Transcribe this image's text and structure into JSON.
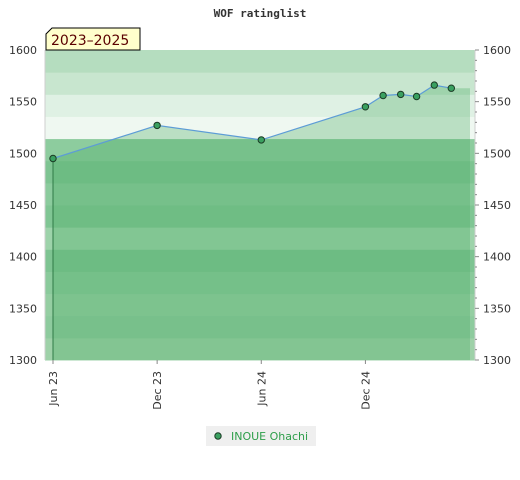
{
  "chart_data": {
    "type": "line",
    "title": "WOF ratinglist",
    "period_label": "2023–2025",
    "ylim": [
      1300,
      1600
    ],
    "yticks": [
      "1300",
      "1350",
      "1400",
      "1450",
      "1500",
      "1550",
      "1600"
    ],
    "x_range": [
      "2023-06-01",
      "2025-05-25"
    ],
    "xticks": [
      {
        "date": "2023-06-01",
        "label": "Jun 23"
      },
      {
        "date": "2023-12-01",
        "label": "Dec 23"
      },
      {
        "date": "2024-06-01",
        "label": "Jun 24"
      },
      {
        "date": "2024-12-01",
        "label": "Dec 24"
      }
    ],
    "grid": true,
    "legend": "bottom-center",
    "series": [
      {
        "name": "INOUE Ohachi",
        "color": "#2e9e4a",
        "points": [
          {
            "date": "2023-06-01",
            "value": 1495
          },
          {
            "date": "2023-12-01",
            "value": 1527
          },
          {
            "date": "2024-06-01",
            "value": 1513
          },
          {
            "date": "2024-12-01",
            "value": 1545
          },
          {
            "date": "2025-01-01",
            "value": 1556
          },
          {
            "date": "2025-02-01",
            "value": 1557
          },
          {
            "date": "2025-03-01",
            "value": 1555
          },
          {
            "date": "2025-04-01",
            "value": 1566
          },
          {
            "date": "2025-05-01",
            "value": 1563
          }
        ]
      }
    ]
  }
}
